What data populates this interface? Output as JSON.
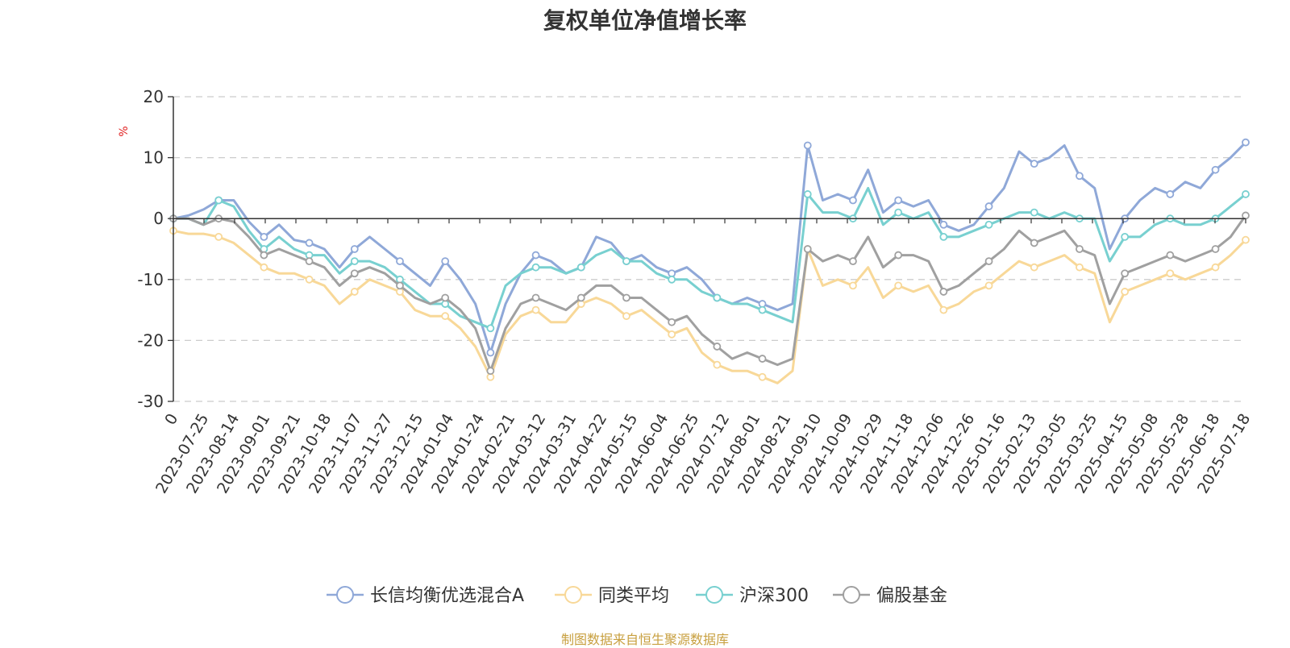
{
  "chart_data": {
    "type": "line",
    "title": "复权单位净值增长率",
    "ylabel": "%",
    "ylim": [
      -30,
      20
    ],
    "yticks": [
      20,
      10,
      0,
      -10,
      -20,
      -30
    ],
    "grid": true,
    "legend_placement": "bottom",
    "x_tick_labels": [
      "0",
      "2023-07-25",
      "2023-08-14",
      "2023-09-01",
      "2023-09-21",
      "2023-10-18",
      "2023-11-07",
      "2023-11-27",
      "2023-12-15",
      "2024-01-04",
      "2024-01-24",
      "2024-02-21",
      "2024-03-12",
      "2024-03-31",
      "2024-04-22",
      "2024-05-15",
      "2024-06-04",
      "2024-06-25",
      "2024-07-12",
      "2024-08-01",
      "2024-08-21",
      "2024-09-10",
      "2024-10-09",
      "2024-10-29",
      "2024-11-18",
      "2024-12-06",
      "2024-12-26",
      "2025-01-16",
      "2025-02-13",
      "2025-03-05",
      "2025-03-25",
      "2025-04-15",
      "2025-05-08",
      "2025-05-28",
      "2025-06-18",
      "2025-07-18"
    ],
    "series": [
      {
        "name": "长信均衡优选混合A",
        "color": "#8fa8d8",
        "values": [
          0,
          0.5,
          1.5,
          3,
          3,
          -0.5,
          -3,
          -1,
          -3.5,
          -4,
          -5,
          -8,
          -5,
          -3,
          -5,
          -7,
          -9,
          -11,
          -7,
          -10,
          -14,
          -22,
          -14,
          -9,
          -6,
          -7,
          -9,
          -8,
          -3,
          -4,
          -7,
          -6,
          -8,
          -9,
          -8,
          -10,
          -13,
          -14,
          -13,
          -14,
          -15,
          -14,
          12,
          3,
          4,
          3,
          8,
          1,
          3,
          2,
          3,
          -1,
          -2,
          -1,
          2,
          5,
          11,
          9,
          10,
          12,
          7,
          5,
          -5,
          0,
          3,
          5,
          4,
          6,
          5,
          8,
          10,
          12.5
        ]
      },
      {
        "name": "同类平均",
        "color": "#f8d898",
        "values": [
          -2,
          -2.5,
          -2.5,
          -3,
          -4,
          -6,
          -8,
          -9,
          -9,
          -10,
          -11,
          -14,
          -12,
          -10,
          -11,
          -12,
          -15,
          -16,
          -16,
          -18,
          -21,
          -26,
          -19,
          -16,
          -15,
          -17,
          -17,
          -14,
          -13,
          -14,
          -16,
          -15,
          -17,
          -19,
          -18,
          -22,
          -24,
          -25,
          -25,
          -26,
          -27,
          -25,
          -5,
          -11,
          -10,
          -11,
          -8,
          -13,
          -11,
          -12,
          -11,
          -15,
          -14,
          -12,
          -11,
          -9,
          -7,
          -8,
          -7,
          -6,
          -8,
          -9,
          -17,
          -12,
          -11,
          -10,
          -9,
          -10,
          -9,
          -8,
          -6,
          -3.5
        ]
      },
      {
        "name": "沪深300",
        "color": "#78d0d0",
        "values": [
          0,
          0,
          -1,
          3,
          2,
          -2,
          -5,
          -3,
          -5,
          -6,
          -6,
          -9,
          -7,
          -7,
          -8,
          -10,
          -12,
          -14,
          -14,
          -16,
          -17,
          -18,
          -11,
          -9,
          -8,
          -8,
          -9,
          -8,
          -6,
          -5,
          -7,
          -7,
          -9,
          -10,
          -10,
          -12,
          -13,
          -14,
          -14,
          -15,
          -16,
          -17,
          4,
          1,
          1,
          0,
          5,
          -1,
          1,
          0,
          1,
          -3,
          -3,
          -2,
          -1,
          0,
          1,
          1,
          0,
          1,
          0,
          0,
          -7,
          -3,
          -3,
          -1,
          0,
          -1,
          -1,
          0,
          2,
          4
        ]
      },
      {
        "name": "偏股基金",
        "color": "#a0a0a0",
        "values": [
          0,
          0,
          -1,
          0,
          -0.5,
          -3,
          -6,
          -5,
          -6,
          -7,
          -8,
          -11,
          -9,
          -8,
          -9,
          -11,
          -13,
          -14,
          -13,
          -15,
          -18,
          -25,
          -18,
          -14,
          -13,
          -14,
          -15,
          -13,
          -11,
          -11,
          -13,
          -13,
          -15,
          -17,
          -16,
          -19,
          -21,
          -23,
          -22,
          -23,
          -24,
          -23,
          -5,
          -7,
          -6,
          -7,
          -3,
          -8,
          -6,
          -6,
          -7,
          -12,
          -11,
          -9,
          -7,
          -5,
          -2,
          -4,
          -3,
          -2,
          -5,
          -6,
          -14,
          -9,
          -8,
          -7,
          -6,
          -7,
          -6,
          -5,
          -3,
          0.5
        ]
      }
    ]
  },
  "source_text": "制图数据来自恒生聚源数据库"
}
